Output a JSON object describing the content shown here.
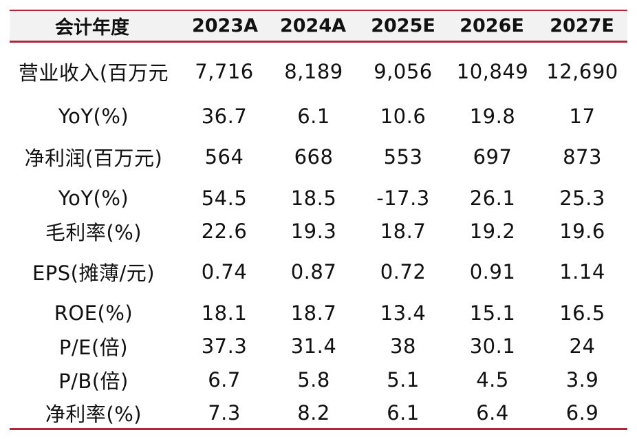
{
  "table": {
    "header": [
      "会计年度",
      "2023A",
      "2024A",
      "2025E",
      "2026E",
      "2027E"
    ],
    "rows": [
      {
        "label": "营业收入(百万元",
        "values": [
          "7,716",
          "8,189",
          "9,056",
          "10,849",
          "12,690"
        ]
      },
      {
        "label": "YoY(%)",
        "values": [
          "36.7",
          "6.1",
          "10.6",
          "19.8",
          "17"
        ]
      },
      {
        "label": "净利润(百万元)",
        "values": [
          "564",
          "668",
          "553",
          "697",
          "873"
        ]
      },
      {
        "label": "YoY(%)",
        "values": [
          "54.5",
          "18.5",
          "-17.3",
          "26.1",
          "25.3"
        ]
      },
      {
        "label": "毛利率(%)",
        "values": [
          "22.6",
          "19.3",
          "18.7",
          "19.2",
          "19.6"
        ]
      },
      {
        "label": "EPS(摊薄/元)",
        "values": [
          "0.74",
          "0.87",
          "0.72",
          "0.91",
          "1.14"
        ]
      },
      {
        "label": "ROE(%)",
        "values": [
          "18.1",
          "18.7",
          "13.4",
          "15.1",
          "16.5"
        ]
      },
      {
        "label": "P/E(倍)",
        "values": [
          "37.3",
          "31.4",
          "38",
          "30.1",
          "24"
        ]
      },
      {
        "label": "P/B(倍)",
        "values": [
          "6.7",
          "5.8",
          "5.1",
          "4.5",
          "3.9"
        ]
      },
      {
        "label": "净利率(%)",
        "values": [
          "7.3",
          "8.2",
          "6.1",
          "6.4",
          "6.9"
        ]
      }
    ]
  },
  "colors": {
    "rule": "#b5253a",
    "header_bg": "#f2f2f2",
    "text": "#111111"
  }
}
